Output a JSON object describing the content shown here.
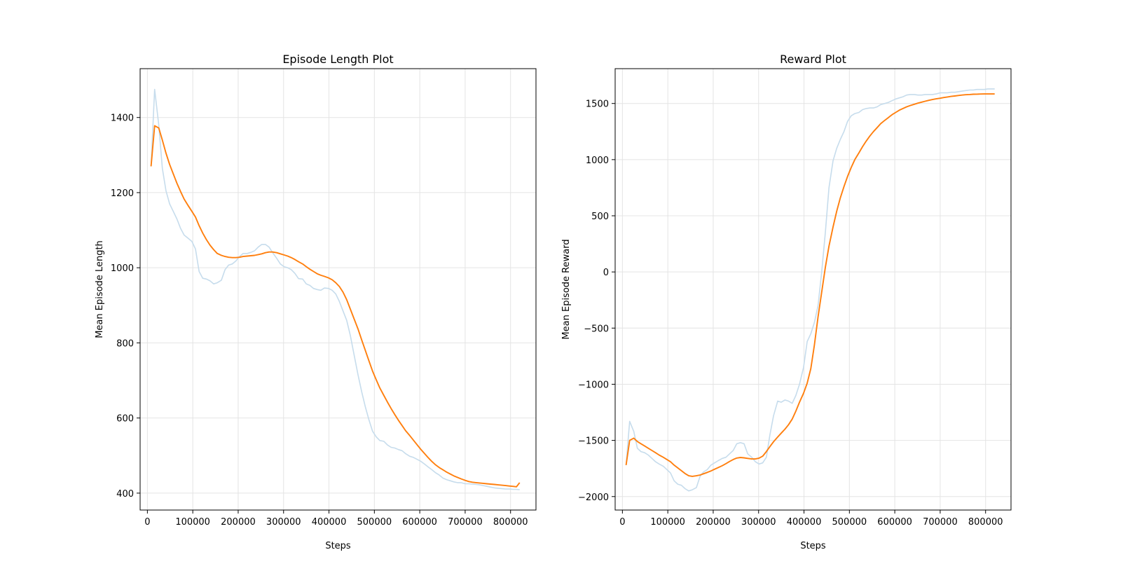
{
  "chart_data": [
    {
      "type": "line",
      "title": "Episode Length Plot",
      "xlabel": "Steps",
      "ylabel": "Mean Episode Length",
      "xlim": [
        -16000,
        856000
      ],
      "ylim": [
        355,
        1530
      ],
      "xticks": [
        0,
        100000,
        200000,
        300000,
        400000,
        500000,
        600000,
        700000,
        800000
      ],
      "xtick_labels": [
        "0",
        "100000",
        "200000",
        "300000",
        "400000",
        "500000",
        "600000",
        "700000",
        "800000"
      ],
      "yticks": [
        400,
        600,
        800,
        1000,
        1200,
        1400
      ],
      "ytick_labels": [
        "400",
        "600",
        "800",
        "1000",
        "1200",
        "1400"
      ],
      "grid": true,
      "series": [
        {
          "color": "#c6dcec",
          "x": [
            8000,
            16000,
            25000,
            33000,
            41000,
            49000,
            57000,
            65000,
            73000,
            81000,
            90000,
            98000,
            106000,
            114000,
            122000,
            130000,
            138000,
            146000,
            154000,
            163000,
            171000,
            179000,
            187000,
            195000,
            203000,
            211000,
            220000,
            228000,
            236000,
            244000,
            252000,
            260000,
            268000,
            276000,
            285000,
            293000,
            301000,
            309000,
            317000,
            325000,
            333000,
            342000,
            350000,
            358000,
            366000,
            374000,
            382000,
            390000,
            399000,
            407000,
            415000,
            423000,
            431000,
            439000,
            447000,
            455000,
            464000,
            472000,
            480000,
            488000,
            496000,
            504000,
            512000,
            521000,
            529000,
            537000,
            545000,
            553000,
            561000,
            569000,
            578000,
            586000,
            594000,
            602000,
            610000,
            618000,
            626000,
            634000,
            643000,
            651000,
            659000,
            667000,
            675000,
            683000,
            691000,
            700000,
            708000,
            716000,
            724000,
            732000,
            740000,
            748000,
            756000,
            765000,
            773000,
            781000,
            789000,
            797000,
            805000,
            813000,
            820000
          ],
          "y": [
            1270,
            1475,
            1380,
            1265,
            1205,
            1170,
            1150,
            1130,
            1105,
            1087,
            1078,
            1070,
            1050,
            990,
            972,
            970,
            965,
            957,
            960,
            967,
            995,
            1007,
            1010,
            1018,
            1030,
            1038,
            1038,
            1041,
            1045,
            1055,
            1062,
            1062,
            1055,
            1040,
            1025,
            1010,
            1003,
            1000,
            995,
            985,
            971,
            970,
            957,
            953,
            945,
            942,
            940,
            946,
            945,
            940,
            930,
            910,
            885,
            860,
            820,
            770,
            715,
            670,
            630,
            595,
            565,
            550,
            540,
            538,
            528,
            522,
            520,
            516,
            513,
            505,
            498,
            495,
            490,
            485,
            478,
            470,
            463,
            455,
            448,
            440,
            436,
            433,
            430,
            428,
            428,
            425,
            425,
            424,
            423,
            422,
            420,
            418,
            416,
            414,
            413,
            412,
            411,
            411,
            410,
            410,
            409
          ]
        },
        {
          "color": "#ff7f0e",
          "x": [
            8000,
            16000,
            25000,
            33000,
            41000,
            49000,
            57000,
            65000,
            73000,
            81000,
            90000,
            98000,
            106000,
            114000,
            122000,
            130000,
            138000,
            146000,
            154000,
            163000,
            171000,
            179000,
            187000,
            195000,
            203000,
            211000,
            220000,
            228000,
            236000,
            244000,
            252000,
            260000,
            268000,
            276000,
            285000,
            293000,
            301000,
            309000,
            317000,
            325000,
            333000,
            342000,
            350000,
            358000,
            366000,
            374000,
            382000,
            390000,
            399000,
            407000,
            415000,
            423000,
            431000,
            439000,
            447000,
            455000,
            464000,
            472000,
            480000,
            488000,
            496000,
            504000,
            512000,
            521000,
            529000,
            537000,
            545000,
            553000,
            561000,
            569000,
            578000,
            586000,
            594000,
            602000,
            610000,
            618000,
            626000,
            634000,
            643000,
            651000,
            659000,
            667000,
            675000,
            683000,
            691000,
            700000,
            708000,
            716000,
            724000,
            732000,
            740000,
            748000,
            756000,
            765000,
            773000,
            781000,
            789000,
            797000,
            805000,
            813000,
            820000
          ],
          "y": [
            1270,
            1378,
            1372,
            1340,
            1305,
            1275,
            1250,
            1225,
            1203,
            1183,
            1165,
            1150,
            1135,
            1112,
            1092,
            1075,
            1060,
            1048,
            1038,
            1033,
            1030,
            1028,
            1027,
            1027,
            1028,
            1030,
            1031,
            1032,
            1033,
            1035,
            1037,
            1040,
            1042,
            1042,
            1040,
            1037,
            1034,
            1031,
            1027,
            1022,
            1016,
            1010,
            1003,
            996,
            990,
            984,
            980,
            977,
            973,
            968,
            960,
            950,
            935,
            915,
            890,
            865,
            837,
            808,
            780,
            752,
            725,
            702,
            680,
            660,
            642,
            625,
            609,
            594,
            580,
            566,
            553,
            541,
            529,
            517,
            506,
            495,
            485,
            476,
            468,
            462,
            456,
            451,
            446,
            442,
            438,
            434,
            431,
            429,
            428,
            427,
            426,
            425,
            424,
            423,
            422,
            421,
            420,
            419,
            418,
            417,
            428
          ]
        }
      ]
    },
    {
      "type": "line",
      "title": "Reward Plot",
      "xlabel": "Steps",
      "ylabel": "Mean Episode Reward",
      "xlim": [
        -16000,
        856000
      ],
      "ylim": [
        -2120,
        1810
      ],
      "xticks": [
        0,
        100000,
        200000,
        300000,
        400000,
        500000,
        600000,
        700000,
        800000
      ],
      "xtick_labels": [
        "0",
        "100000",
        "200000",
        "300000",
        "400000",
        "500000",
        "600000",
        "700000",
        "800000"
      ],
      "yticks": [
        -2000,
        -1500,
        -1000,
        -500,
        0,
        500,
        1000,
        1500
      ],
      "ytick_labels": [
        "−2000",
        "−1500",
        "−1000",
        "−500",
        "0",
        "500",
        "1000",
        "1500"
      ],
      "grid": true,
      "series": [
        {
          "color": "#c6dcec",
          "x": [
            8000,
            16000,
            25000,
            33000,
            41000,
            49000,
            57000,
            65000,
            73000,
            81000,
            90000,
            98000,
            106000,
            114000,
            122000,
            130000,
            138000,
            146000,
            154000,
            163000,
            171000,
            179000,
            187000,
            195000,
            203000,
            211000,
            220000,
            228000,
            236000,
            244000,
            252000,
            260000,
            268000,
            276000,
            285000,
            293000,
            301000,
            309000,
            317000,
            325000,
            333000,
            342000,
            350000,
            358000,
            366000,
            374000,
            382000,
            390000,
            399000,
            407000,
            415000,
            423000,
            431000,
            439000,
            447000,
            455000,
            464000,
            472000,
            480000,
            488000,
            496000,
            504000,
            512000,
            521000,
            529000,
            537000,
            545000,
            553000,
            561000,
            569000,
            578000,
            586000,
            594000,
            602000,
            610000,
            618000,
            626000,
            634000,
            643000,
            651000,
            659000,
            667000,
            675000,
            683000,
            691000,
            700000,
            708000,
            716000,
            724000,
            732000,
            740000,
            748000,
            756000,
            765000,
            773000,
            781000,
            789000,
            797000,
            805000,
            813000,
            820000
          ],
          "y": [
            -1720,
            -1330,
            -1420,
            -1570,
            -1600,
            -1610,
            -1630,
            -1660,
            -1690,
            -1710,
            -1730,
            -1760,
            -1790,
            -1860,
            -1890,
            -1900,
            -1930,
            -1950,
            -1940,
            -1920,
            -1820,
            -1780,
            -1760,
            -1720,
            -1700,
            -1680,
            -1660,
            -1650,
            -1620,
            -1590,
            -1530,
            -1520,
            -1530,
            -1620,
            -1650,
            -1690,
            -1710,
            -1700,
            -1650,
            -1450,
            -1280,
            -1150,
            -1160,
            -1140,
            -1150,
            -1170,
            -1100,
            -1000,
            -850,
            -620,
            -550,
            -450,
            -300,
            0,
            350,
            750,
            990,
            1100,
            1180,
            1250,
            1340,
            1390,
            1410,
            1420,
            1445,
            1455,
            1460,
            1460,
            1470,
            1490,
            1500,
            1510,
            1525,
            1540,
            1550,
            1560,
            1575,
            1580,
            1580,
            1575,
            1575,
            1580,
            1580,
            1580,
            1585,
            1595,
            1595,
            1595,
            1600,
            1600,
            1605,
            1610,
            1615,
            1620,
            1620,
            1625,
            1625,
            1625,
            1630,
            1630,
            1630
          ]
        },
        {
          "color": "#ff7f0e",
          "x": [
            8000,
            16000,
            25000,
            33000,
            41000,
            49000,
            57000,
            65000,
            73000,
            81000,
            90000,
            98000,
            106000,
            114000,
            122000,
            130000,
            138000,
            146000,
            154000,
            163000,
            171000,
            179000,
            187000,
            195000,
            203000,
            211000,
            220000,
            228000,
            236000,
            244000,
            252000,
            260000,
            268000,
            276000,
            285000,
            293000,
            301000,
            309000,
            317000,
            325000,
            333000,
            342000,
            350000,
            358000,
            366000,
            374000,
            382000,
            390000,
            399000,
            407000,
            415000,
            423000,
            431000,
            439000,
            447000,
            455000,
            464000,
            472000,
            480000,
            488000,
            496000,
            504000,
            512000,
            521000,
            529000,
            537000,
            545000,
            553000,
            561000,
            569000,
            578000,
            586000,
            594000,
            602000,
            610000,
            618000,
            626000,
            634000,
            643000,
            651000,
            659000,
            667000,
            675000,
            683000,
            691000,
            700000,
            708000,
            716000,
            724000,
            732000,
            740000,
            748000,
            756000,
            765000,
            773000,
            781000,
            789000,
            797000,
            805000,
            813000,
            820000
          ],
          "y": [
            -1720,
            -1500,
            -1480,
            -1510,
            -1530,
            -1550,
            -1570,
            -1590,
            -1610,
            -1630,
            -1650,
            -1670,
            -1690,
            -1720,
            -1745,
            -1770,
            -1795,
            -1815,
            -1820,
            -1815,
            -1808,
            -1797,
            -1785,
            -1772,
            -1757,
            -1742,
            -1725,
            -1707,
            -1688,
            -1670,
            -1657,
            -1652,
            -1655,
            -1660,
            -1665,
            -1665,
            -1658,
            -1640,
            -1600,
            -1555,
            -1512,
            -1470,
            -1435,
            -1400,
            -1360,
            -1310,
            -1240,
            -1160,
            -1080,
            -990,
            -860,
            -650,
            -400,
            -180,
            40,
            230,
            400,
            540,
            660,
            760,
            850,
            930,
            1000,
            1060,
            1115,
            1165,
            1210,
            1250,
            1285,
            1320,
            1350,
            1375,
            1400,
            1420,
            1440,
            1455,
            1470,
            1482,
            1493,
            1503,
            1512,
            1520,
            1528,
            1535,
            1541,
            1547,
            1553,
            1558,
            1563,
            1567,
            1571,
            1575,
            1578,
            1580,
            1582,
            1583,
            1584,
            1585,
            1585,
            1585,
            1585
          ]
        }
      ]
    }
  ]
}
